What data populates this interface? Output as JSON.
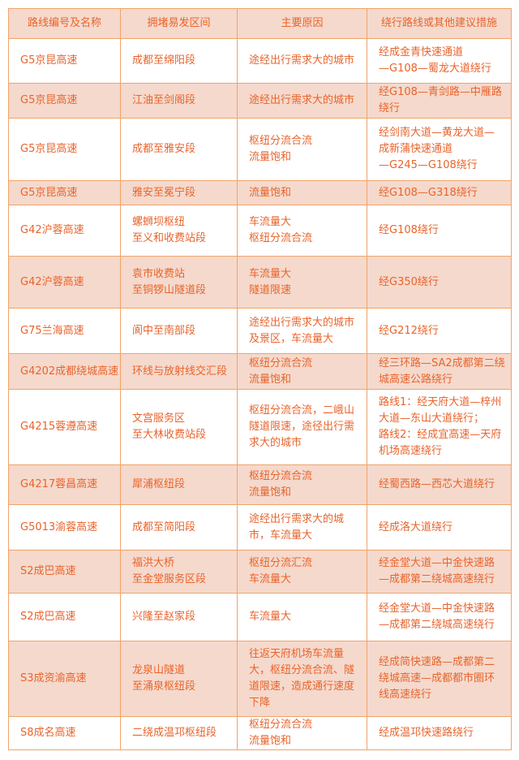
{
  "table": {
    "headers": [
      "路线编号及名称",
      "拥堵易发区间",
      "主要原因",
      "绕行路线或其他建议措施"
    ],
    "rows": [
      [
        "G5京昆高速",
        "成都至绵阳段",
        "途经出行需求大的城市",
        "经成金青快速通道\n—G108—蜀龙大道绕行"
      ],
      [
        "G5京昆高速",
        "江油至剑阁段",
        "途经出行需求大的城市",
        "经G108—青剑路—中雁路\n绕行"
      ],
      [
        "G5京昆高速",
        "成都至雅安段",
        "枢纽分流合流\n流量饱和",
        "经剑南大道—黄龙大道—\n成新蒲快速通道\n—G245—G108绕行"
      ],
      [
        "G5京昆高速",
        "雅安至冕宁段",
        "流量饱和",
        "经G108—G318绕行"
      ],
      [
        "G42沪蓉高速",
        "螺蛳坝枢纽\n至义和收费站段",
        "车流量大\n枢纽分流合流",
        "经G108绕行"
      ],
      [
        "G42沪蓉高速",
        "袁市收费站\n至铜锣山隧道段",
        "车流量大\n隧道限速",
        "经G350绕行"
      ],
      [
        "G75兰海高速",
        "阆中至南部段",
        "途经出行需求大的城市\n及景区，车流量大",
        "经G212绕行"
      ],
      [
        "G4202成都绕城高速",
        "环线与放射线交汇段",
        "枢纽分流合流\n流量饱和",
        "经三环路—SA2成都第二绕\n城高速公路绕行"
      ],
      [
        "G4215蓉遵高速",
        "文宫服务区\n至大林收费站段",
        "枢纽分流合流，二峨山\n隧道限速，途径出行需\n求大的城市",
        "路线1：经天府大道—梓州\n大道—东山大道绕行；\n路线2：经成宜高速—天府\n机场高速绕行"
      ],
      [
        "G4217蓉昌高速",
        "犀浦枢纽段",
        "枢纽分流合流\n流量饱和",
        "经蜀西路—西芯大道绕行"
      ],
      [
        "G5013渝蓉高速",
        "成都至简阳段",
        "途经出行需求大的城\n市，车流量大",
        "经成洛大道绕行"
      ],
      [
        "S2成巴高速",
        "福洪大桥\n至金堂服务区段",
        "枢纽分流汇流\n车流量大",
        "经金堂大道—中金快速路\n—成都第二绕城高速绕行"
      ],
      [
        "S2成巴高速",
        "兴隆至赵家段",
        "车流量大",
        "经金堂大道—中金快速路\n—成都第二绕城高速绕行"
      ],
      [
        "S3成资渝高速",
        "龙泉山隧道\n至涌泉枢纽段",
        "往返天府机场车流量\n大，枢纽分流合流、隧\n道限速，造成通行速度\n下降",
        "经成简快速路—成都第二\n绕城高速—成都都市圈环\n线高速绕行"
      ],
      [
        "S8成名高速",
        "二绕成温邛枢纽段",
        "枢纽分流合流\n流量饱和",
        "经成温邛快速路绕行"
      ]
    ]
  },
  "colors": {
    "text": "#e8642c",
    "border": "#f0a46a",
    "shade": "#f5d9cc"
  }
}
